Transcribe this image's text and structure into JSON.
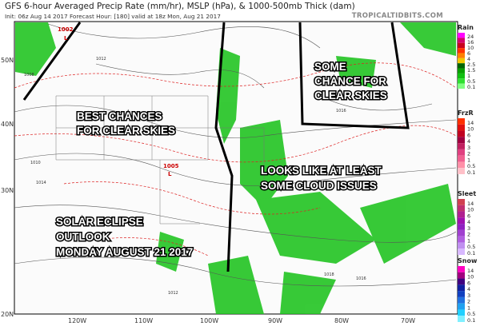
{
  "header": {
    "title": "GFS 6-hour Averaged Precip Rate (mm/hr), MSLP (hPa), & 1000-500mb Thick (dam)",
    "subtitle": "Init: 06z Aug 14 2017   Forecast Hour: [180]   valid at 18z Mon, Aug 21 2017",
    "brand": "TROPICALTIDBITS.COM"
  },
  "axes": {
    "lat": [
      "50N",
      "40N",
      "30N",
      "20N"
    ],
    "lon": [
      "120W",
      "110W",
      "100W",
      "90W",
      "80W",
      "70W"
    ]
  },
  "annotations": {
    "clear_best": [
      "BEST CHANCES",
      "FOR CLEAR SKIES"
    ],
    "clear_some": [
      "SOME",
      "CHANCE FOR",
      "CLEAR SKIES"
    ],
    "clouds": [
      "LOOKS LIKE AT LEAST",
      "SOME CLOUD ISSUES"
    ],
    "eclipse": [
      "SOLAR ECLIPSE",
      "OUTLOOK",
      "MONDAY AUGUST 21 2017"
    ]
  },
  "pressure_labels": {
    "low1": "1002",
    "low2": "1005",
    "low_marker": "L",
    "isobars": [
      "1012",
      "1008",
      "1016",
      "1014",
      "1010",
      "1018",
      "1016",
      "1012"
    ]
  },
  "legend": [
    {
      "title": "Rain",
      "labels": [
        "24",
        "16",
        "10",
        "6",
        "4",
        "2.5",
        "1.5",
        "1",
        "0.5",
        "0.1"
      ],
      "colors": [
        "#ff00ff",
        "#d4006a",
        "#c8001e",
        "#ff3300",
        "#ff8000",
        "#f0c800",
        "#006400",
        "#08a000",
        "#10c010",
        "#30e030",
        "#80ff80"
      ]
    },
    {
      "title": "FrzR",
      "labels": [
        "14",
        "10",
        "6",
        "4",
        "3",
        "2",
        "1",
        "0.5",
        "0.1"
      ],
      "colors": [
        "#ff3000",
        "#e01010",
        "#c00020",
        "#a00040",
        "#c02060",
        "#e04080",
        "#f06090",
        "#ff90a8",
        "#ffc0c8"
      ]
    },
    {
      "title": "Sleet",
      "labels": [
        "14",
        "10",
        "6",
        "4",
        "3",
        "2",
        "1",
        "0.5",
        "0.1"
      ],
      "colors": [
        "#d04050",
        "#c03070",
        "#b02090",
        "#a010b0",
        "#9020c0",
        "#a040d0",
        "#b060e0",
        "#c090f0",
        "#d8b8ff"
      ]
    },
    {
      "title": "Snow",
      "labels": [
        "14",
        "10",
        "6",
        "4",
        "3",
        "2",
        "1",
        "0.5",
        "0.1"
      ],
      "colors": [
        "#ff00c0",
        "#a00080",
        "#400080",
        "#1020a0",
        "#1040c0",
        "#2070e0",
        "#20a0f0",
        "#20d0ff",
        "#80f0ff"
      ]
    }
  ]
}
